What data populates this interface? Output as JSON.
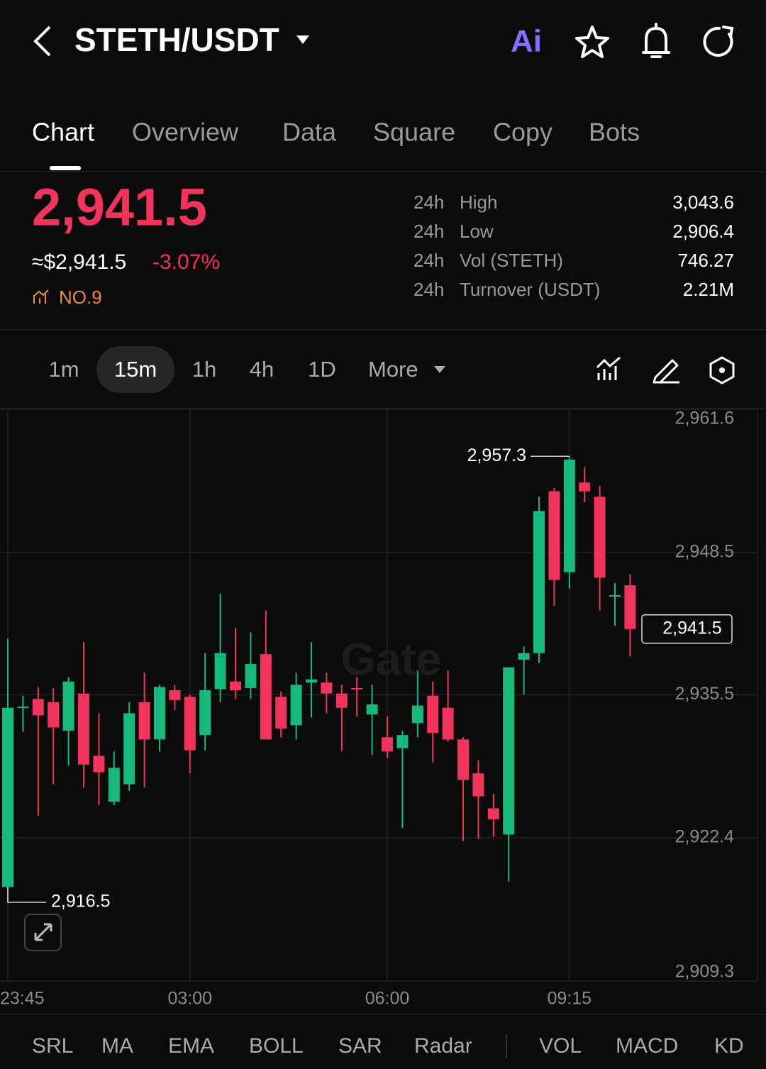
{
  "header": {
    "pair": "STETH/USDT",
    "ai": "Ai"
  },
  "tabs": [
    "Chart",
    "Overview",
    "Data",
    "Square",
    "Copy",
    "Bots"
  ],
  "price": {
    "last": "2,941.5",
    "usd": "≈$2,941.5",
    "change": "-3.07%",
    "rank": "NO.9"
  },
  "stats": [
    {
      "period": "24h",
      "label": "High",
      "value": "3,043.6"
    },
    {
      "period": "24h",
      "label": "Low",
      "value": "2,906.4"
    },
    {
      "period": "24h",
      "label": "Vol (STETH)",
      "value": "746.27"
    },
    {
      "period": "24h",
      "label": "Turnover (USDT)",
      "value": "2.21M"
    }
  ],
  "intervals": [
    "1m",
    "15m",
    "1h",
    "4h",
    "1D"
  ],
  "more": "More",
  "indicators": [
    "SRL",
    "MA",
    "EMA",
    "BOLL",
    "SAR",
    "Radar",
    "VOL",
    "MACD",
    "KD"
  ],
  "chart_data": {
    "type": "candlestick",
    "watermark": "Gate",
    "categories": [
      "23:45",
      null,
      null,
      null,
      null,
      null,
      null,
      null,
      null,
      null,
      null,
      null,
      "03:00",
      null,
      null,
      null,
      null,
      null,
      null,
      null,
      null,
      null,
      null,
      null,
      null,
      "06:00",
      null,
      null,
      null,
      null,
      null,
      null,
      null,
      null,
      null,
      null,
      null,
      "09:15",
      null,
      null,
      null,
      null
    ],
    "open": [
      2917.9,
      2934.4,
      2935.1,
      2934.8,
      2932.2,
      2935.6,
      2929.9,
      2925.7,
      2927.3,
      2934.8,
      2931.4,
      2935.9,
      2935.3,
      2931.8,
      2936.0,
      2936.7,
      2936.1,
      2939.2,
      2935.3,
      2932.7,
      2936.6,
      2936.6,
      2935.6,
      2936.1,
      2933.7,
      2931.6,
      2930.6,
      2932.9,
      2935.4,
      2934.3,
      2931.4,
      2928.3,
      2925.1,
      2922.7,
      2938.7,
      2939.3,
      2954.1,
      2946.7,
      2954.9,
      2953.6,
      2944.5,
      2945.5
    ],
    "high": [
      2940.6,
      2935.4,
      2936.2,
      2936.1,
      2937.1,
      2940.3,
      2933.8,
      2930.3,
      2934.8,
      2937.5,
      2936.4,
      2936.4,
      2935.5,
      2939.3,
      2944.7,
      2941.6,
      2941.2,
      2943.2,
      2935.8,
      2937.5,
      2940.3,
      2937.5,
      2936.4,
      2937.1,
      2936.4,
      2933.5,
      2932.2,
      2937.7,
      2936.7,
      2937.7,
      2931.6,
      2929.5,
      2926.4,
      2938.0,
      2939.9,
      2953.6,
      2954.4,
      2957.3,
      2956.3,
      2954.6,
      2945.7,
      2946.5
    ],
    "low": [
      2916.5,
      2932.1,
      2924.4,
      2927.3,
      2929.0,
      2927.0,
      2925.4,
      2925.4,
      2926.7,
      2927.0,
      2930.3,
      2934.1,
      2928.3,
      2930.4,
      2934.8,
      2935.1,
      2935.1,
      2931.4,
      2931.6,
      2931.4,
      2933.4,
      2933.8,
      2930.3,
      2933.5,
      2930.0,
      2929.7,
      2923.3,
      2931.6,
      2929.3,
      2931.2,
      2922.1,
      2922.3,
      2922.5,
      2918.4,
      2935.5,
      2938.4,
      2943.6,
      2945.2,
      2953.1,
      2943.2,
      2941.8,
      2939.0
    ],
    "close": [
      2934.3,
      2934.4,
      2933.6,
      2932.5,
      2936.7,
      2929.1,
      2928.4,
      2928.8,
      2933.8,
      2931.4,
      2936.2,
      2935.0,
      2930.4,
      2935.9,
      2939.3,
      2935.9,
      2938.3,
      2931.4,
      2932.4,
      2936.4,
      2936.9,
      2935.6,
      2934.3,
      2936.0,
      2934.6,
      2930.3,
      2931.8,
      2934.5,
      2932.0,
      2931.4,
      2927.7,
      2926.2,
      2924.1,
      2938.0,
      2939.3,
      2952.3,
      2946.0,
      2957.0,
      2954.1,
      2946.2,
      2944.6,
      2941.5
    ],
    "up_color": "#16b97c",
    "down_color": "#f2335c",
    "ylim": [
      2909.3,
      2961.6
    ],
    "yticks": [
      {
        "value": 2961.6,
        "label": "2,961.6"
      },
      {
        "value": 2948.5,
        "label": "2,948.5"
      },
      {
        "value": 2935.5,
        "label": "2,935.5"
      },
      {
        "value": 2922.4,
        "label": "2,922.4"
      },
      {
        "value": 2909.3,
        "label": "2,909.3"
      }
    ],
    "grid": true,
    "max_label": {
      "value": 2957.3,
      "label": "2,957.3"
    },
    "min_label": {
      "value": 2916.5,
      "label": "2,916.5"
    },
    "last_price": {
      "value": 2941.5,
      "label": "2,941.5"
    }
  }
}
